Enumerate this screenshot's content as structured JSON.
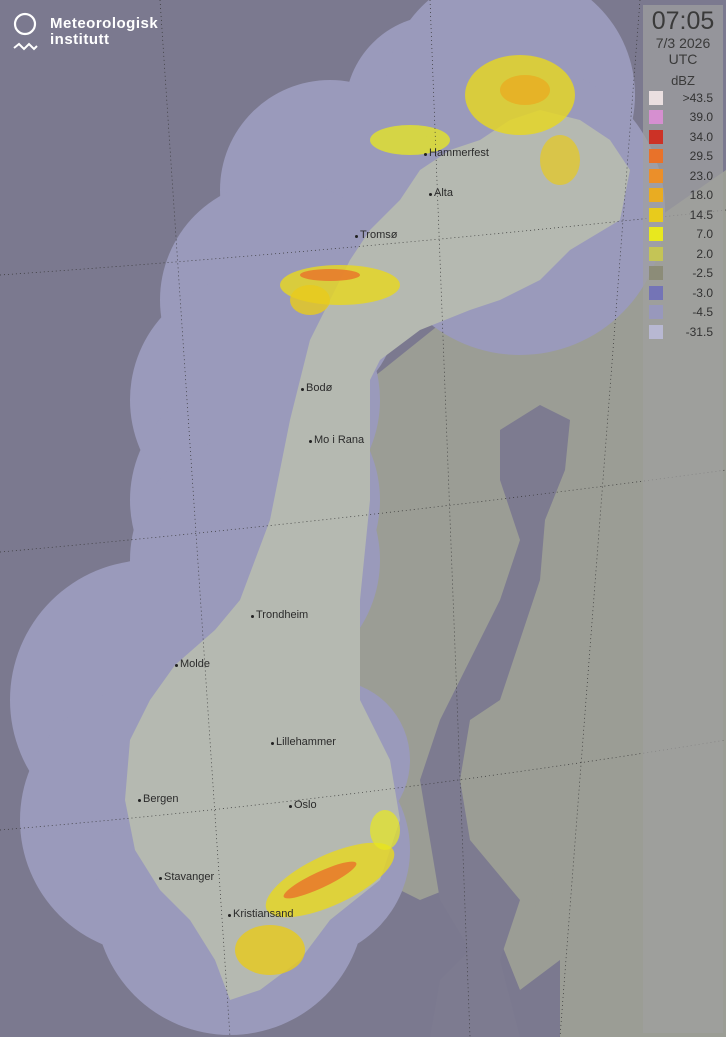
{
  "logo": {
    "line1": "Meteorologisk",
    "line2": "institutt"
  },
  "legend": {
    "time": "07:05",
    "date": "7/3 2026",
    "timezone": "UTC",
    "unit": "dBZ",
    "items": [
      {
        "label": ">43.5",
        "color": "#eadfe0"
      },
      {
        "label": "39.0",
        "color": "#d68fd0"
      },
      {
        "label": "34.0",
        "color": "#cc3226"
      },
      {
        "label": "29.5",
        "color": "#e8722a"
      },
      {
        "label": "23.0",
        "color": "#eb8f2a"
      },
      {
        "label": "18.0",
        "color": "#e9ac22"
      },
      {
        "label": "14.5",
        "color": "#e8cb1c"
      },
      {
        "label": "7.0",
        "color": "#e8e81e"
      },
      {
        "label": "2.0",
        "color": "#c4c456"
      },
      {
        "label": "-2.5",
        "color": "#8c8c78"
      },
      {
        "label": "-3.0",
        "color": "#7474b6"
      },
      {
        "label": "-4.5",
        "color": "#9898bc"
      },
      {
        "label": "-31.5",
        "color": "#b8b8d2"
      }
    ]
  },
  "cities": [
    {
      "name": "Hammerfest"
    },
    {
      "name": "Alta"
    },
    {
      "name": "Tromsø"
    },
    {
      "name": "Bodø"
    },
    {
      "name": "Mo i Rana"
    },
    {
      "name": "Trondheim"
    },
    {
      "name": "Molde"
    },
    {
      "name": "Lillehammer"
    },
    {
      "name": "Bergen"
    },
    {
      "name": "Oslo"
    },
    {
      "name": "Stavanger"
    },
    {
      "name": "Kristiansand"
    }
  ],
  "colors": {
    "sea": "#7b798f",
    "radar_coverage": "#9a9abb",
    "norway_land": "#b5b9b1",
    "neighbour_land": "#9b9d95"
  }
}
